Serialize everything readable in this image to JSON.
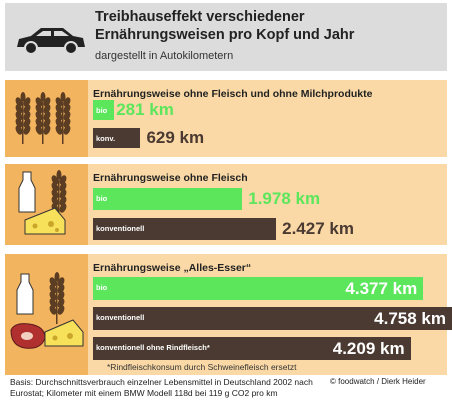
{
  "header": {
    "title": "Treibhauseffekt verschiedener Ernährungsweisen pro Kopf und Jahr",
    "subtitle": "dargestellt in Autokilometern"
  },
  "chart_data": [
    {
      "type": "bar",
      "orientation": "horizontal",
      "title": "Ernährungsweise ohne Fleisch und ohne Milchprodukte",
      "categories": [
        "bio",
        "konv."
      ],
      "values": [
        281,
        629
      ],
      "value_labels": [
        "281 km",
        "629 km"
      ],
      "colors": [
        "#5ce65c",
        "#4b3a31"
      ]
    },
    {
      "type": "bar",
      "orientation": "horizontal",
      "title": "Ernährungsweise ohne Fleisch",
      "categories": [
        "bio",
        "konventionell"
      ],
      "values": [
        1978,
        2427
      ],
      "value_labels": [
        "1.978 km",
        "2.427 km"
      ],
      "colors": [
        "#5ce65c",
        "#4b3a31"
      ]
    },
    {
      "type": "bar",
      "orientation": "horizontal",
      "title": "Ernährungsweise „Alles-Esser“",
      "categories": [
        "bio",
        "konventionell",
        "konventionell ohne Rindfleisch*"
      ],
      "values": [
        4377,
        4758,
        4209
      ],
      "value_labels": [
        "4.377 km",
        "4.758 km",
        "4.209 km"
      ],
      "colors": [
        "#5ce65c",
        "#4b3a31",
        "#4b3a31"
      ],
      "note": "*Rindfleischkonsum durch Schweinefleisch ersetzt"
    }
  ],
  "footer": {
    "source": "Basis: Durchschnittsverbrauch einzelner Lebensmittel in Deutschland 2002 nach Eurostat; Kilometer mit einem BMW Modell 118d bei 119 g CO2 pro km",
    "credit": "© foodwatch / Dierk Heider"
  }
}
